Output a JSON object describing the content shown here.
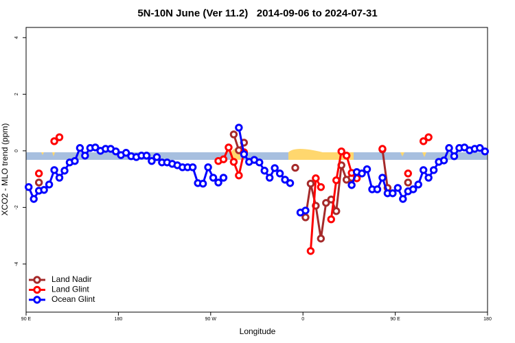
{
  "chart_data": {
    "type": "line",
    "title": "5N-10N June (Ver 11.2)   2014-09-06 to 2024-07-31",
    "x_label": "Longitude",
    "y_label": "XCO2 - MLO trend (ppm)",
    "xlim": [
      -270,
      180
    ],
    "xticks": [
      {
        "value": -270,
        "label": "90 E"
      },
      {
        "value": -180,
        "label": "180"
      },
      {
        "value": -90,
        "label": "90 W"
      },
      0,
      {
        "value": 90,
        "label": "90 E"
      },
      180
    ],
    "ylim": [
      -5.7,
      4.36
    ],
    "yticks": [
      -4,
      -2,
      0,
      2,
      4
    ],
    "legend": "bottom-left",
    "x": [
      -267.5,
      -262.5,
      -257.5,
      -252.5,
      -247.5,
      -242.5,
      -237.5,
      -232.5,
      -227.5,
      -222.5,
      -217.5,
      -212.5,
      -207.5,
      -202.5,
      -197.5,
      -192.5,
      -187.5,
      -182.5,
      -177.5,
      -172.5,
      -167.5,
      -162.5,
      -157.5,
      -152.5,
      -147.5,
      -142.5,
      -137.5,
      -132.5,
      -127.5,
      -122.5,
      -117.5,
      -112.5,
      -107.5,
      -102.5,
      -97.5,
      -92.5,
      -87.5,
      -82.5,
      -77.5,
      -72.5,
      -67.5,
      -62.5,
      -57.5,
      -52.5,
      -47.5,
      -42.5,
      -37.5,
      -32.5,
      -27.5,
      -22.5,
      -17.5,
      -12.5,
      -7.5,
      -2.5,
      2.5,
      7.5,
      12.5,
      17.5,
      22.5,
      27.5,
      32.5,
      37.5,
      42.5,
      47.5,
      52.5,
      57.5,
      62.5,
      67.5,
      72.5,
      77.5,
      82.5,
      87.5,
      92.5,
      97.5,
      102.5,
      107.5,
      112.5,
      117.5,
      122.5,
      127.5,
      132.5,
      137.5,
      142.5,
      147.5,
      152.5,
      157.5,
      162.5,
      167.5,
      172.5,
      177.5
    ],
    "series": [
      {
        "name": "Land Nadir",
        "color": "#a52a2a",
        "values": [
          null,
          null,
          -1.12,
          null,
          null,
          null,
          null,
          null,
          null,
          null,
          null,
          null,
          null,
          null,
          null,
          null,
          null,
          null,
          null,
          null,
          null,
          null,
          null,
          null,
          null,
          null,
          null,
          null,
          null,
          null,
          null,
          null,
          null,
          null,
          null,
          null,
          null,
          null,
          null,
          null,
          0.58,
          0.02,
          0.29,
          null,
          null,
          null,
          null,
          null,
          null,
          null,
          null,
          null,
          -0.6,
          null,
          -2.35,
          -1.16,
          -1.94,
          -3.1,
          -1.84,
          -1.72,
          -2.13,
          -0.51,
          -1.02,
          -0.95,
          null,
          null,
          null,
          null,
          null,
          0.05,
          -1.31,
          null,
          null,
          null,
          -1.12,
          null,
          null,
          null,
          null,
          null,
          null,
          null,
          null,
          null,
          null,
          null,
          null,
          null,
          null,
          null
        ]
      },
      {
        "name": "Land Glint",
        "color": "#ff0000",
        "values": [
          null,
          null,
          -0.8,
          null,
          null,
          0.34,
          0.48,
          null,
          null,
          null,
          null,
          null,
          null,
          null,
          null,
          null,
          null,
          null,
          null,
          null,
          null,
          null,
          null,
          null,
          null,
          null,
          null,
          null,
          null,
          null,
          null,
          null,
          null,
          null,
          null,
          null,
          null,
          -0.36,
          -0.3,
          0.12,
          -0.39,
          -0.87,
          -0.05,
          null,
          null,
          null,
          null,
          null,
          null,
          null,
          null,
          null,
          null,
          null,
          null,
          -3.54,
          -0.97,
          -1.28,
          null,
          -2.42,
          -1.04,
          -0.02,
          -0.17,
          -0.78,
          -0.97,
          null,
          null,
          null,
          null,
          0.07,
          null,
          null,
          null,
          null,
          -0.8,
          null,
          null,
          0.34,
          0.48,
          null,
          null,
          null,
          null,
          null,
          null,
          null,
          null,
          null,
          null,
          null
        ]
      },
      {
        "name": "Ocean Glint",
        "color": "#0000ff",
        "values": [
          -1.28,
          -1.7,
          -1.41,
          -1.38,
          -1.19,
          -0.68,
          -0.95,
          -0.7,
          -0.41,
          -0.36,
          0.1,
          -0.17,
          0.1,
          0.12,
          0,
          0.07,
          0.07,
          -0.02,
          -0.15,
          -0.07,
          -0.19,
          -0.22,
          -0.17,
          -0.17,
          -0.36,
          -0.22,
          -0.41,
          -0.41,
          -0.46,
          -0.51,
          -0.58,
          -0.58,
          -0.58,
          -1.14,
          -1.16,
          -0.58,
          -0.95,
          -1.12,
          -0.95,
          null,
          null,
          0.82,
          -0.12,
          -0.39,
          -0.32,
          -0.41,
          -0.7,
          -0.95,
          -0.61,
          -0.8,
          -1.02,
          -1.14,
          null,
          -2.18,
          -2.11,
          null,
          null,
          null,
          null,
          null,
          null,
          null,
          null,
          -1.21,
          -0.75,
          -0.8,
          -0.65,
          -1.36,
          -1.36,
          -0.95,
          -1.5,
          -1.5,
          -1.31,
          -1.7,
          -1.43,
          -1.36,
          -1.19,
          -0.68,
          -0.95,
          -0.68,
          -0.39,
          -0.34,
          0.1,
          -0.19,
          0.1,
          0.12,
          0.02,
          0.07,
          0.1,
          -0.02
        ]
      }
    ]
  }
}
